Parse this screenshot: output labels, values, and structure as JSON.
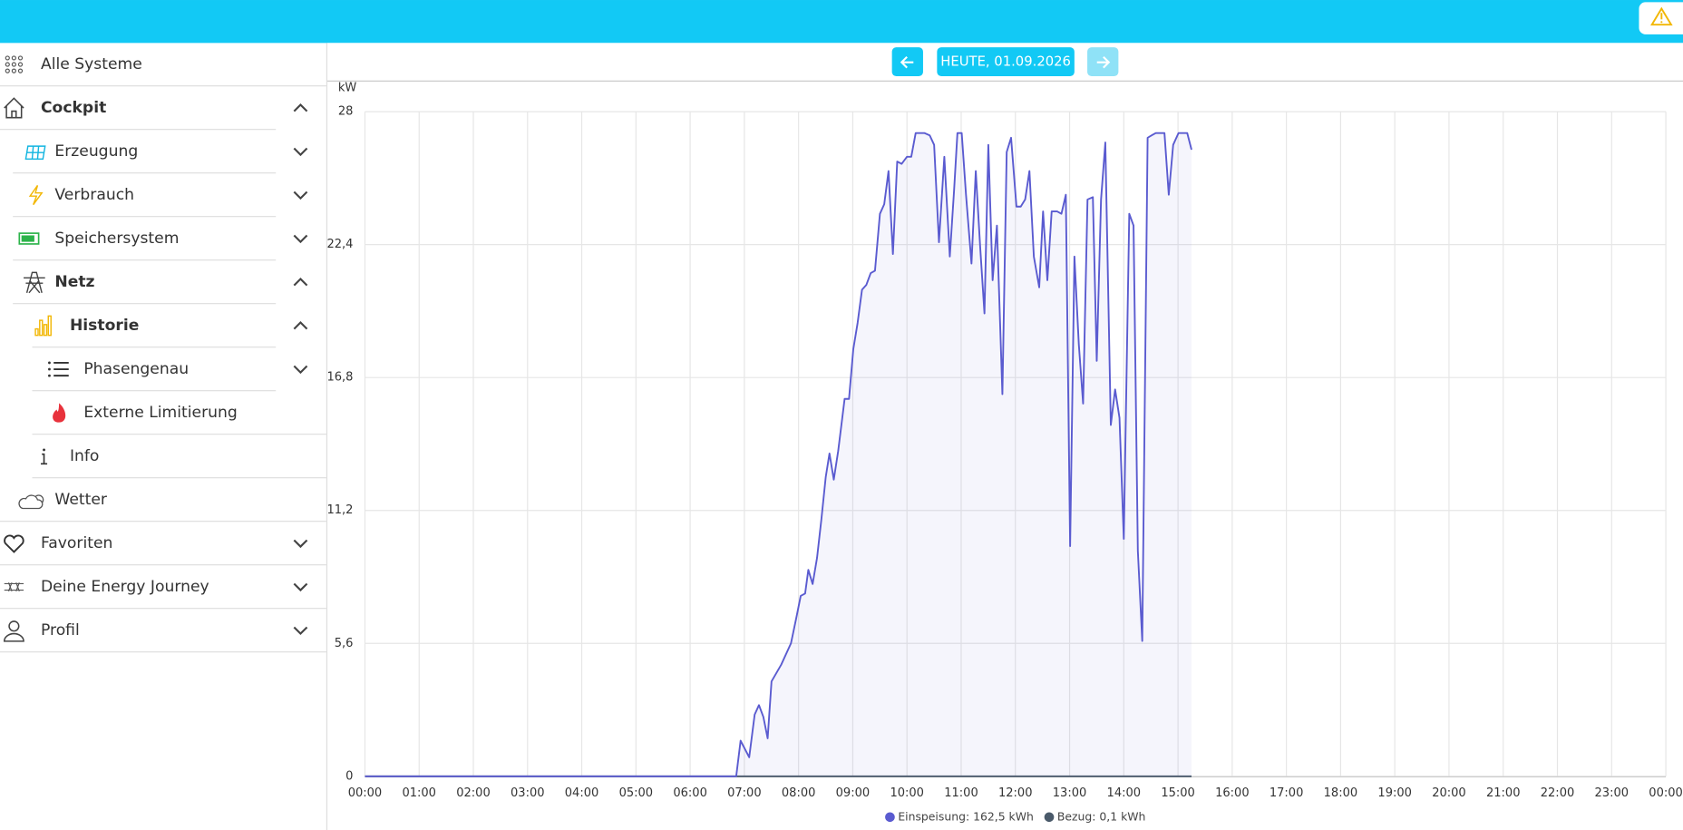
{
  "sidebar": {
    "items": [
      "Alle Systeme",
      "Cockpit",
      "Erzeugung",
      "Verbrauch",
      "Speichersystem",
      "Netz",
      "Historie",
      "Phasengenau",
      "Externe Limitierung",
      "Info",
      "Wetter",
      "Favoriten",
      "Deine Energy Journey",
      "Profil"
    ]
  },
  "date_nav": {
    "label": "HEUTE, 01.09.2026"
  },
  "chart_data": {
    "type": "line",
    "y_label": "kW",
    "xlim": [
      0,
      24
    ],
    "xticks": [
      {
        "value": 0,
        "label": "00:00"
      },
      {
        "value": 1,
        "label": "01:00"
      },
      {
        "value": 2,
        "label": "02:00"
      },
      {
        "value": 3,
        "label": "03:00"
      },
      {
        "value": 4,
        "label": "04:00"
      },
      {
        "value": 5,
        "label": "05:00"
      },
      {
        "value": 6,
        "label": "06:00"
      },
      {
        "value": 7,
        "label": "07:00"
      },
      {
        "value": 8,
        "label": "08:00"
      },
      {
        "value": 9,
        "label": "09:00"
      },
      {
        "value": 10,
        "label": "10:00"
      },
      {
        "value": 11,
        "label": "11:00"
      },
      {
        "value": 12,
        "label": "12:00"
      },
      {
        "value": 13,
        "label": "13:00"
      },
      {
        "value": 14,
        "label": "14:00"
      },
      {
        "value": 15,
        "label": "15:00"
      },
      {
        "value": 16,
        "label": "16:00"
      },
      {
        "value": 17,
        "label": "17:00"
      },
      {
        "value": 18,
        "label": "18:00"
      },
      {
        "value": 19,
        "label": "19:00"
      },
      {
        "value": 20,
        "label": "20:00"
      },
      {
        "value": 21,
        "label": "21:00"
      },
      {
        "value": 22,
        "label": "22:00"
      },
      {
        "value": 23,
        "label": "23:00"
      },
      {
        "value": 24,
        "label": "00:00"
      }
    ],
    "ylim": [
      0,
      28
    ],
    "yticks": [
      0,
      {
        "value": 5.6,
        "label": "5,6"
      },
      {
        "value": 11.2,
        "label": "11,2"
      },
      {
        "value": 16.8,
        "label": "16,8"
      },
      {
        "value": 22.4,
        "label": "22,4"
      },
      28
    ],
    "grid": true,
    "series": [
      {
        "name": "Einspeisung: 162,5 kWh",
        "color": "#5a5bd0",
        "x": [
          0,
          6.85,
          6.93,
          7.09,
          7.19,
          7.27,
          7.35,
          7.43,
          7.5,
          7.68,
          7.86,
          7.96,
          8.04,
          8.12,
          8.18,
          8.26,
          8.34,
          8.42,
          8.5,
          8.57,
          8.65,
          8.73,
          8.85,
          8.93,
          9.01,
          9.09,
          9.17,
          9.25,
          9.33,
          9.41,
          9.5,
          9.58,
          9.66,
          9.74,
          9.82,
          9.9,
          10.0,
          10.08,
          10.16,
          10.24,
          10.32,
          10.42,
          10.5,
          10.59,
          10.69,
          10.79,
          10.87,
          10.93,
          11.01,
          11.09,
          11.19,
          11.27,
          11.35,
          11.43,
          11.5,
          11.58,
          11.66,
          11.76,
          11.84,
          11.92,
          12.02,
          12.1,
          12.18,
          12.26,
          12.34,
          12.44,
          12.51,
          12.59,
          12.67,
          12.77,
          12.85,
          12.93,
          13.01,
          13.09,
          13.17,
          13.25,
          13.33,
          13.43,
          13.5,
          13.58,
          13.66,
          13.76,
          13.84,
          13.92,
          14.0,
          14.1,
          14.18,
          14.26,
          14.34,
          14.44,
          14.51,
          14.59,
          14.67,
          14.75,
          14.83,
          14.91,
          15.01,
          15.09,
          15.17,
          15.25
        ],
        "values": [
          0,
          0,
          1.5,
          0.8,
          2.6,
          3.0,
          2.5,
          1.6,
          4.0,
          4.7,
          5.6,
          6.7,
          7.6,
          7.7,
          8.7,
          8.1,
          9.2,
          10.8,
          12.6,
          13.6,
          12.5,
          13.7,
          15.9,
          15.9,
          18.0,
          19.1,
          20.5,
          20.7,
          21.2,
          21.3,
          23.7,
          24.1,
          25.5,
          22.0,
          25.9,
          25.8,
          26.1,
          26.1,
          27.1,
          27.1,
          27.1,
          27.0,
          26.6,
          22.5,
          26.1,
          21.9,
          24.7,
          27.1,
          27.1,
          24.5,
          21.6,
          25.5,
          22.3,
          19.5,
          26.6,
          20.9,
          23.2,
          16.1,
          26.3,
          26.9,
          24.0,
          24.0,
          24.3,
          25.5,
          21.9,
          20.6,
          23.8,
          20.9,
          23.8,
          23.8,
          23.7,
          24.5,
          9.7,
          21.9,
          18.2,
          15.7,
          24.3,
          24.4,
          17.5,
          24.3,
          26.7,
          14.8,
          16.3,
          15.1,
          10.0,
          23.7,
          23.2,
          9.5,
          5.7,
          26.9,
          27.0,
          27.1,
          27.1,
          27.1,
          24.5,
          26.6,
          27.1,
          27.1,
          27.1,
          26.4
        ]
      },
      {
        "name": "Bezug: 0,1 kWh",
        "color": "#4a5a6a",
        "x": [
          0,
          15.25
        ],
        "values": [
          0,
          0
        ]
      }
    ]
  }
}
